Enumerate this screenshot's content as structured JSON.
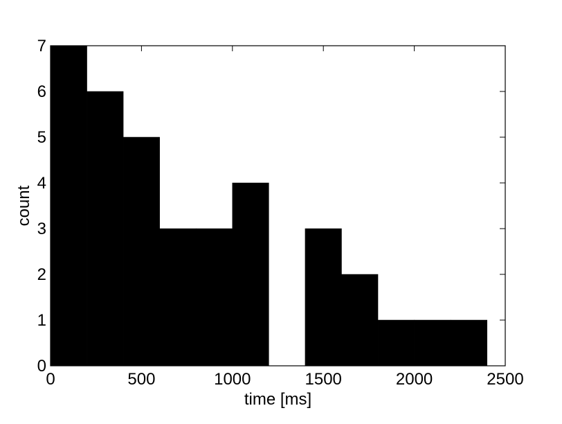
{
  "chart_data": {
    "type": "bar",
    "title": "",
    "xlabel": "time [ms]",
    "ylabel": "count",
    "xlim": [
      0,
      2500
    ],
    "ylim": [
      0,
      7
    ],
    "x_ticks": [
      "0",
      "500",
      "1000",
      "1500",
      "2000",
      "2500"
    ],
    "y_ticks": [
      "0",
      "1",
      "2",
      "3",
      "4",
      "5",
      "6",
      "7"
    ],
    "grid": false,
    "bin_width": 200,
    "bin_starts": [
      0,
      200,
      400,
      600,
      800,
      1000,
      1200,
      1400,
      1600,
      1800,
      2000,
      2200
    ],
    "values": [
      7,
      6,
      5,
      3,
      3,
      4,
      0,
      3,
      2,
      1,
      1,
      1
    ],
    "bar_color": "#000000"
  }
}
